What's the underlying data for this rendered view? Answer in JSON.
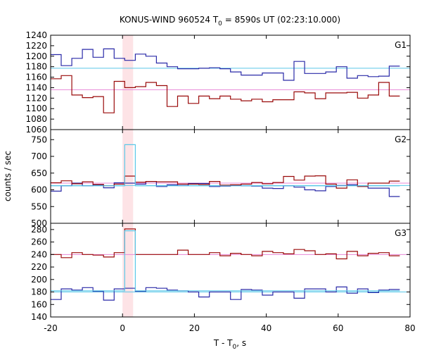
{
  "chart_data": {
    "type": "line",
    "title_prefix": "KONUS-WIND 960524 T",
    "title_sub": "0",
    "title_suffix": " = 8590s UT (02:23:10.000)",
    "xlabel_prefix": "T - T",
    "xlabel_sub": "0",
    "xlabel_suffix": ", s",
    "ylabel": "counts / sec",
    "xlim": [
      -20,
      80
    ],
    "x_ticks": [
      -20,
      0,
      20,
      40,
      60,
      80
    ],
    "highlight_region": [
      0,
      2.944
    ],
    "colors": {
      "blue": "#2a2aa8",
      "red": "#9a0a0a",
      "cyan": "#5ac8e8",
      "pink": "#e88ad8",
      "shade": "#fde3e6"
    },
    "panels": [
      {
        "label": "G1",
        "ylim": [
          1060,
          1240
        ],
        "y_ticks": [
          1060,
          1080,
          1100,
          1120,
          1140,
          1160,
          1180,
          1200,
          1220,
          1240
        ],
        "bin_width": 2.944,
        "x_start": -20,
        "series": [
          {
            "color": "blue",
            "values": [
              1203,
              1182,
              1196,
              1213,
              1198,
              1214,
              1196,
              1192,
              1204,
              1200,
              1187,
              1180,
              1176,
              1176,
              1177,
              1178,
              1176,
              1170,
              1164,
              1164,
              1168,
              1168,
              1154,
              1190,
              1167,
              1167,
              1170,
              1180,
              1158,
              1163,
              1161,
              1162,
              1181
            ]
          },
          {
            "color": "red",
            "values": [
              1157,
              1163,
              1126,
              1121,
              1123,
              1092,
              1152,
              1140,
              1142,
              1150,
              1144,
              1104,
              1124,
              1110,
              1124,
              1119,
              1124,
              1118,
              1115,
              1118,
              1113,
              1117,
              1117,
              1132,
              1130,
              1119,
              1130,
              1130,
              1131,
              1120,
              1126,
              1150,
              1124
            ]
          }
        ],
        "refs": [
          {
            "color": "cyan",
            "value": 1177
          },
          {
            "color": "pink",
            "value": 1136
          }
        ]
      },
      {
        "label": "G2",
        "ylim": [
          500,
          780
        ],
        "y_ticks": [
          500,
          550,
          600,
          650,
          700,
          750
        ],
        "bin_width": 2.944,
        "x_start": -20,
        "series": [
          {
            "color": "blue",
            "values": [
              596,
              612,
              620,
              612,
              615,
              606,
              621,
              620,
              617,
              625,
              610,
              615,
              613,
              619,
              619,
              610,
              611,
              614,
              612,
              611,
              605,
              604,
              612,
              608,
              600,
              597,
              610,
              613,
              615,
              611,
              605,
              605,
              580
            ]
          },
          {
            "color": "red",
            "values": [
              621,
              627,
              618,
              624,
              616,
              612,
              617,
              641,
              623,
              625,
              624,
              624,
              617,
              617,
              616,
              625,
              614,
              615,
              617,
              622,
              618,
              622,
              640,
              629,
              641,
              642,
              617,
              605,
              630,
              610,
              620,
              620,
              626
            ]
          },
          {
            "color": "cyan",
            "values": [
              612,
              612,
              612,
              612,
              612,
              612,
              612,
              735,
              612,
              612,
              612,
              612,
              612,
              612,
              612,
              612,
              612,
              612,
              612,
              612,
              612,
              612,
              612,
              612,
              612,
              612,
              612,
              612,
              612,
              612,
              612,
              612,
              612
            ]
          }
        ],
        "refs": [
          {
            "color": "cyan",
            "value": 613
          },
          {
            "color": "pink",
            "value": 620
          }
        ]
      },
      {
        "label": "G3",
        "ylim": [
          140,
          290
        ],
        "y_ticks": [
          140,
          160,
          180,
          200,
          220,
          240,
          260,
          280
        ],
        "bin_width": 2.944,
        "x_start": -20,
        "series": [
          {
            "color": "blue",
            "values": [
              168,
              185,
              183,
              187,
              181,
              167,
              185,
              186,
              181,
              187,
              186,
              183,
              182,
              180,
              172,
              180,
              180,
              168,
              184,
              183,
              175,
              180,
              180,
              170,
              185,
              185,
              180,
              188,
              178,
              185,
              179,
              183,
              184
            ]
          },
          {
            "color": "red",
            "values": [
              240,
              235,
              243,
              240,
              239,
              236,
              243,
              281,
              240,
              240,
              240,
              240,
              247,
              240,
              240,
              243,
              238,
              242,
              240,
              238,
              245,
              243,
              241,
              248,
              246,
              240,
              241,
              233,
              245,
              238,
              242,
              243,
              238
            ]
          },
          {
            "color": "cyan",
            "values": [
              182,
              182,
              182,
              182,
              182,
              182,
              182,
              278,
              182,
              182,
              182,
              182,
              182,
              182,
              182,
              182,
              182,
              182,
              182,
              182,
              182,
              182,
              182,
              182,
              182,
              182,
              182,
              182,
              182,
              182,
              182,
              182,
              182
            ]
          }
        ],
        "refs": [
          {
            "color": "cyan",
            "value": 180
          },
          {
            "color": "pink",
            "value": 240
          }
        ]
      }
    ]
  }
}
